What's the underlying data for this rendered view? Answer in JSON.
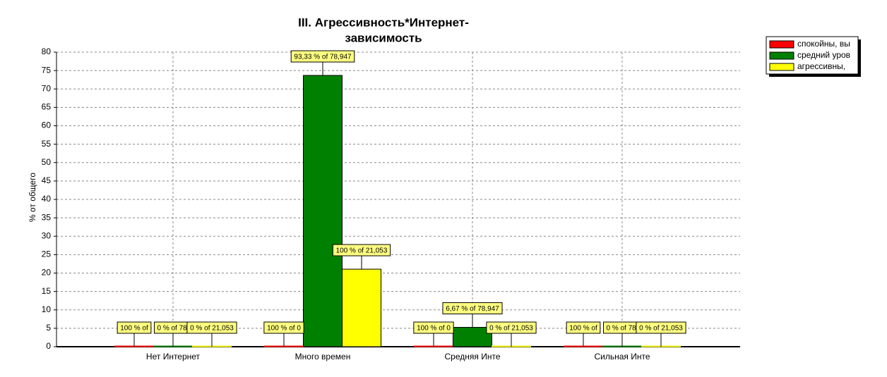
{
  "chart_data": {
    "type": "bar",
    "title": [
      "III. Агрессивность*Интернет-",
      "зависимость"
    ],
    "y_label": "% от общего",
    "categories": [
      "Нет Интернет",
      "Много времен",
      "Средняя Инте",
      "Сильная Инте"
    ],
    "series": [
      {
        "name": "спокойны, вы",
        "color": "#ff0000",
        "values": [
          0,
          0,
          0,
          0
        ],
        "value_labels": [
          "100 % of",
          "100 % of 0",
          "100 % of 0",
          "100 % of"
        ]
      },
      {
        "name": "средний уров",
        "color": "#008000",
        "values": [
          0,
          73.68,
          5.26,
          0
        ],
        "value_labels": [
          "0 % of 78,",
          "93,33 % of 78,947",
          "6,67 % of 78,947",
          "0 % of 78,"
        ]
      },
      {
        "name": "агрессивны,",
        "color": "#ffff00",
        "values": [
          0,
          21.053,
          0,
          0
        ],
        "value_labels": [
          "0 % of 21,053",
          "100 % of 21,053",
          "0 % of 21,053",
          "0 % of 21,053"
        ]
      }
    ],
    "ylim": [
      0,
      80
    ],
    "yticks": [
      0,
      5,
      10,
      15,
      20,
      25,
      30,
      35,
      40,
      45,
      50,
      55,
      60,
      65,
      70,
      75,
      80
    ],
    "grid": true,
    "legend": "top-right"
  }
}
